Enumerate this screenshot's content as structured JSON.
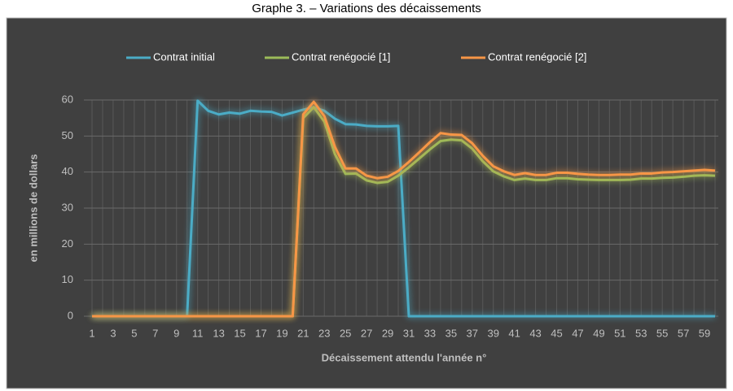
{
  "chart_data": {
    "type": "line",
    "title": "Graphe 3. – Variations des décaissements",
    "y_label": "en millions de dollars",
    "x_label": "Décaissement attendu l'année n°",
    "categories": [
      1,
      null,
      3,
      null,
      5,
      null,
      7,
      null,
      9,
      null,
      11,
      null,
      13,
      null,
      15,
      null,
      17,
      null,
      19,
      null,
      21,
      null,
      23,
      null,
      25,
      null,
      27,
      null,
      29,
      null,
      31,
      null,
      33,
      null,
      35,
      null,
      37,
      null,
      39,
      null,
      41,
      null,
      43,
      null,
      45,
      null,
      47,
      null,
      49,
      null,
      51,
      null,
      53,
      null,
      55,
      null,
      57,
      null,
      59,
      null
    ],
    "series": [
      {
        "name": "Contrat initial",
        "color": "#4bacc6",
        "values": [
          0,
          0,
          0,
          0,
          0,
          0,
          0,
          0,
          0,
          0,
          59.8,
          57,
          56,
          56.5,
          56.2,
          57,
          56.8,
          56.7,
          55.7,
          56.5,
          57.3,
          58,
          57,
          54.8,
          53.3,
          53.2,
          52.8,
          52.7,
          52.7,
          52.8,
          0,
          0,
          0,
          0,
          0,
          0,
          0,
          0,
          0,
          0,
          0,
          0,
          0,
          0,
          0,
          0,
          0,
          0,
          0,
          0,
          0,
          0,
          0,
          0,
          0,
          0,
          0,
          0,
          0,
          0
        ]
      },
      {
        "name": "Contrat renégocié [1]",
        "color": "#9bbb59",
        "values": [
          0,
          0,
          0,
          0,
          0,
          0,
          0,
          0,
          0,
          0,
          0,
          0,
          0,
          0,
          0,
          0,
          0,
          0,
          0,
          0,
          55,
          58,
          54,
          45,
          39.5,
          39.6,
          37.7,
          37,
          37.3,
          39,
          41.3,
          43.8,
          46.3,
          48.6,
          49,
          48.8,
          46.5,
          43,
          40.2,
          38.8,
          37.8,
          38.2,
          37.8,
          37.8,
          38.3,
          38.3,
          38,
          37.9,
          37.8,
          37.8,
          37.8,
          37.9,
          38.2,
          38.2,
          38.4,
          38.5,
          38.7,
          39,
          39.1,
          39
        ]
      },
      {
        "name": "Contrat renégocié [2]",
        "color": "#f79646",
        "values": [
          0,
          0,
          0,
          0,
          0,
          0,
          0,
          0,
          0,
          0,
          0,
          0,
          0,
          0,
          0,
          0,
          0,
          0,
          0,
          0,
          56,
          59.5,
          55.5,
          47,
          41,
          41,
          39,
          38.3,
          38.7,
          40.3,
          42.8,
          45.5,
          48.3,
          50.8,
          50.4,
          50.3,
          48,
          44.5,
          41.6,
          40.2,
          39.2,
          39.7,
          39.2,
          39.2,
          39.8,
          39.8,
          39.5,
          39.3,
          39.2,
          39.2,
          39.3,
          39.3,
          39.6,
          39.6,
          39.9,
          40,
          40.2,
          40.4,
          40.6,
          40.4
        ]
      }
    ],
    "ylim": [
      0,
      60
    ],
    "yticks": [
      0,
      10,
      20,
      30,
      40,
      50,
      60
    ],
    "grid": true,
    "legend": "top"
  }
}
